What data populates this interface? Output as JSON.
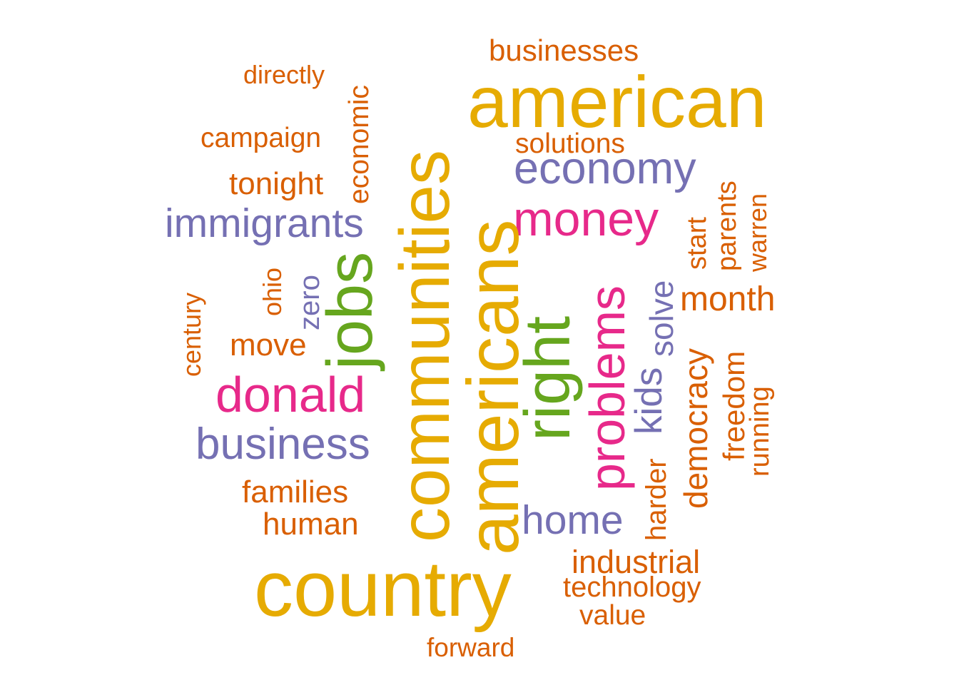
{
  "words": {
    "country": "country",
    "americans": "americans",
    "communities": "communities",
    "american": "american",
    "right": "right",
    "jobs": "jobs",
    "problems": "problems",
    "donald": "donald",
    "money": "money",
    "economy": "economy",
    "immigrants": "immigrants",
    "business": "business",
    "home": "home",
    "kids": "kids",
    "solve": "solve",
    "zero": "zero",
    "businesses": "businesses",
    "directly": "directly",
    "economic": "economic",
    "campaign": "campaign",
    "tonight": "tonight",
    "solutions": "solutions",
    "parents": "parents",
    "warren": "warren",
    "start": "start",
    "ohio": "ohio",
    "century": "century",
    "move": "move",
    "month": "month",
    "democracy": "democracy",
    "freedom": "freedom",
    "running": "running",
    "families": "families",
    "human": "human",
    "harder": "harder",
    "industrial": "industrial",
    "technology": "technology",
    "value": "value",
    "forward": "forward"
  },
  "colors": {
    "orange": "#D95F02",
    "gold": "#E6AB02",
    "purple": "#7570B3",
    "pink": "#E7298A",
    "green": "#66A61E"
  }
}
